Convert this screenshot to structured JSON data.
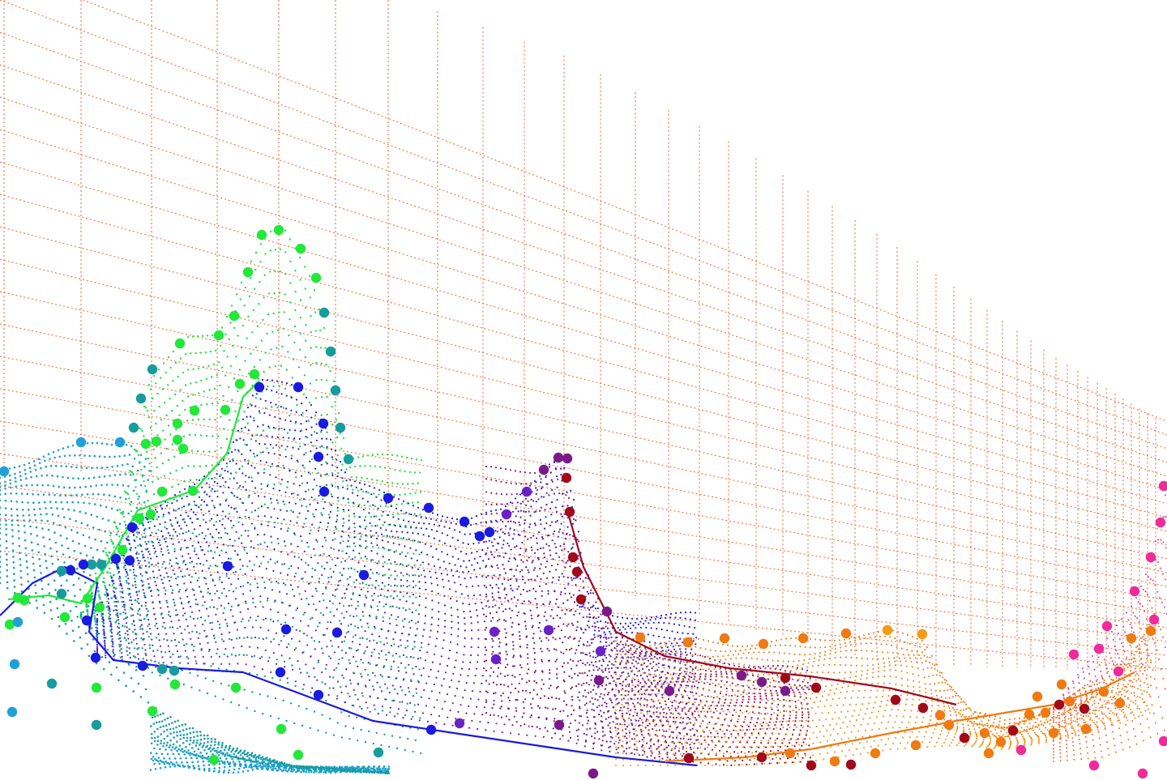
{
  "artwork": {
    "kind": "generative point-cloud landscape",
    "background": "#ffffff",
    "grid_color": "#f0703a",
    "palette": {
      "cyan": "#1fa0d8",
      "green": "#22e83a",
      "teal": "#169c9c",
      "blue": "#1a1ae0",
      "violet": "#6a22c8",
      "purple": "#7a1a8a",
      "crimson": "#a00a1a",
      "orange": "#f07a12",
      "amber": "#f59a14",
      "magenta": "#f02a9a"
    },
    "layers": [
      {
        "name": "cyan-layer",
        "color": "#1fa0d8"
      },
      {
        "name": "green-layer",
        "color": "#22e83a"
      },
      {
        "name": "teal-layer",
        "color": "#169c9c"
      },
      {
        "name": "blue-violet-layer",
        "color": "#3320e0"
      },
      {
        "name": "purple-crimson-layer",
        "color": "#8a0a3a"
      },
      {
        "name": "orange-layer",
        "color": "#f07a12"
      },
      {
        "name": "magenta-layer",
        "color": "#f02a9a"
      }
    ]
  }
}
